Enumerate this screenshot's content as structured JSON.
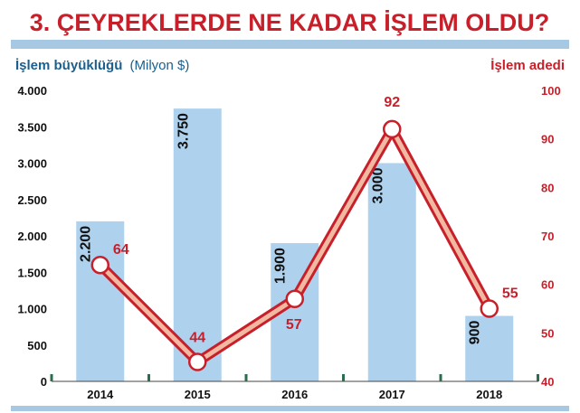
{
  "colors": {
    "title": "#c8202a",
    "left_axis_title": "#1a5f8e",
    "right_axis": "#c8202a",
    "bar": "#aed1ee",
    "line_outer": "#c8202a",
    "line_inner": "#f2b9a2",
    "marker_fill": "#ffffff",
    "frame": "#a6c8e2",
    "tick_mark": "#2b6e4e"
  },
  "chart_data": {
    "type": "bar",
    "title": "3. ÇEYREKLERDE NE KADAR İŞLEM OLDU?",
    "categories": [
      "2014",
      "2015",
      "2016",
      "2017",
      "2018"
    ],
    "series": [
      {
        "name": "İşlem büyüklüğü (Milyon $)",
        "type": "bar",
        "axis": "left",
        "values": [
          2200,
          3750,
          1900,
          3000,
          900
        ],
        "labels": [
          "2.200",
          "3.750",
          "1.900",
          "3.000",
          "900"
        ]
      },
      {
        "name": "İşlem adedi",
        "type": "line",
        "axis": "right",
        "values": [
          64,
          44,
          57,
          92,
          55
        ],
        "labels": [
          "64",
          "44",
          "57",
          "92",
          "55"
        ]
      }
    ],
    "y_left": {
      "title_main": "İşlem büyüklüğü",
      "title_unit": "(Milyon $)",
      "ylim": [
        0,
        4000
      ],
      "ticks": [
        0,
        500,
        1000,
        1500,
        2000,
        2500,
        3000,
        3500,
        4000
      ],
      "tick_labels": [
        "0",
        "500",
        "1.000",
        "1.500",
        "2.000",
        "2.500",
        "3.000",
        "3.500",
        "4.000"
      ]
    },
    "y_right": {
      "title": "İşlem adedi",
      "ylim": [
        40,
        100
      ],
      "ticks": [
        40,
        50,
        60,
        70,
        80,
        90,
        100
      ],
      "tick_labels": [
        "40",
        "50",
        "60",
        "70",
        "80",
        "90",
        "100"
      ]
    },
    "grid": false,
    "legend": "none"
  }
}
